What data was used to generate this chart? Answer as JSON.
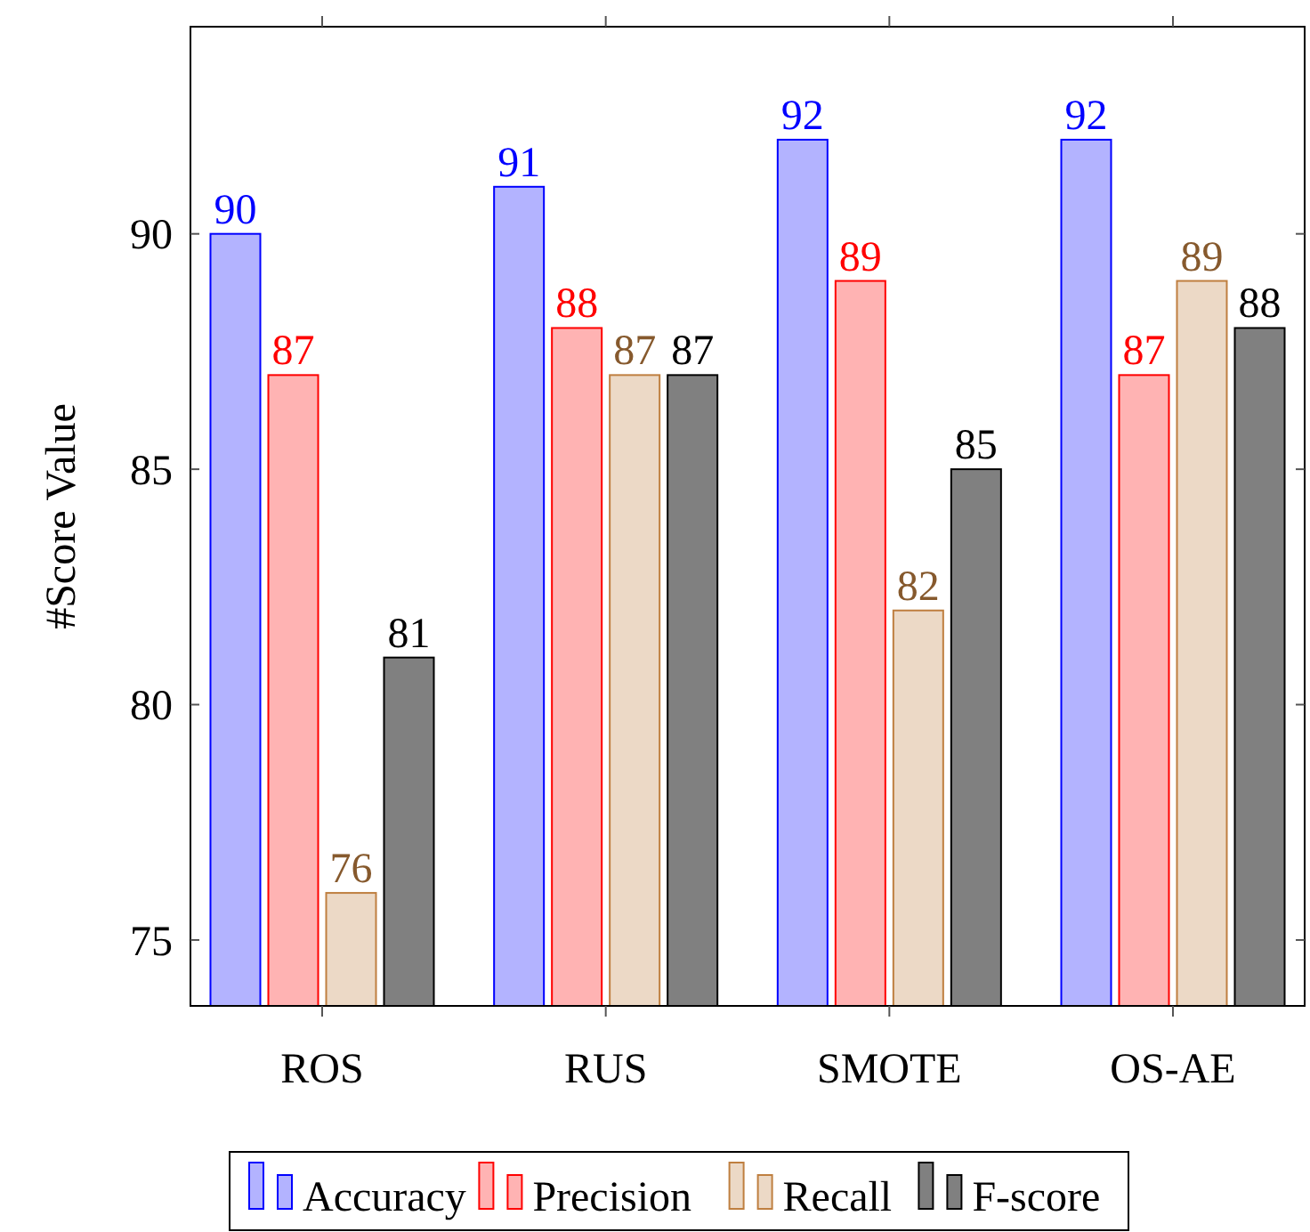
{
  "chart_data": {
    "type": "bar",
    "ylabel": "#Score Value",
    "categories": [
      "ROS",
      "RUS",
      "SMOTE",
      "OS-AE"
    ],
    "series": [
      {
        "name": "Accuracy",
        "color": "#b3b3ff",
        "values": [
          90,
          91,
          92,
          92
        ]
      },
      {
        "name": "Precision",
        "color": "#ffb3b3",
        "values": [
          87,
          88,
          89,
          87
        ]
      },
      {
        "name": "Recall",
        "color": "#ecd9c6",
        "values": [
          76,
          87,
          82,
          89
        ]
      },
      {
        "name": "F-score",
        "color": "#808080",
        "values": [
          81,
          87,
          85,
          88
        ]
      }
    ],
    "ylim": [
      73.6,
      94.4
    ],
    "yticks": [
      75,
      80,
      85,
      90
    ],
    "data_labels": true,
    "grid": false,
    "legend": "bottom"
  }
}
